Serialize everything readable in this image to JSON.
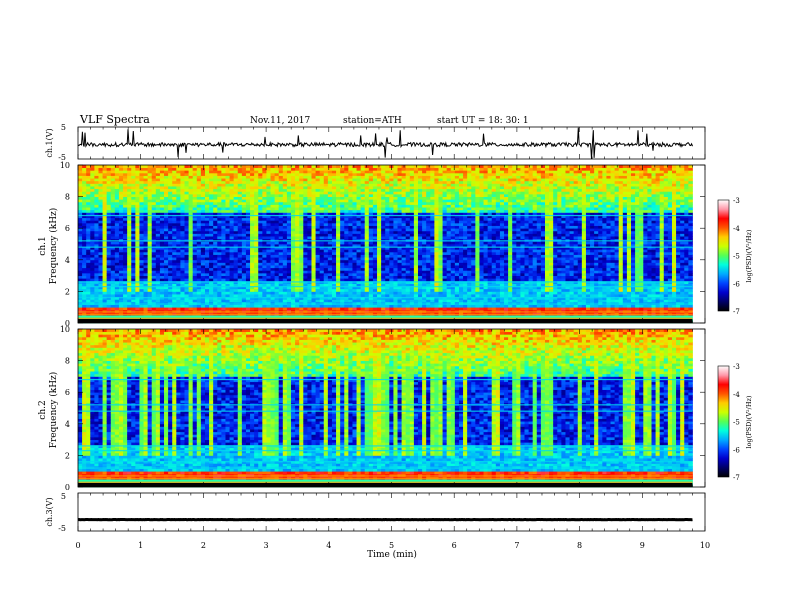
{
  "header": {
    "title": "VLF  Spectra",
    "date": "Nov.11, 2017",
    "station": "station=ATH",
    "start": "start  UT  =   18: 30: 1"
  },
  "colors": {
    "cmap": [
      "#000000",
      "#000066",
      "#0000cc",
      "#0044ff",
      "#00aaff",
      "#00ffdd",
      "#55ff55",
      "#ccff00",
      "#ffcc00",
      "#ff5500",
      "#ff0000",
      "#ff99aa",
      "#ffffff"
    ],
    "waveform": "#000000"
  },
  "chart_data": [
    {
      "type": "line",
      "name": "ch1-waveform",
      "ylabel": "ch.1(V)",
      "ylim": [
        -5,
        5
      ],
      "yticks": [
        "5",
        "-5"
      ],
      "xlim": [
        0,
        10
      ],
      "baseline": -0.5
    },
    {
      "type": "heatmap",
      "name": "ch1-spectrogram",
      "ylabel": "ch.1\nFrequency  (kHz)",
      "ylim": [
        0,
        10
      ],
      "yticks": [
        "0",
        "2",
        "4",
        "6",
        "8",
        "10"
      ],
      "xlim": [
        0,
        10
      ],
      "data_end_min": 9.8,
      "colorbar": {
        "label": "log(PSD)(V²/Hz)",
        "range": [
          -7,
          -3
        ],
        "ticks": [
          "-3",
          "-4",
          "-5",
          "-6",
          "-7"
        ]
      }
    },
    {
      "type": "heatmap",
      "name": "ch2-spectrogram",
      "ylabel": "ch.2\nFrequency  (kHz)",
      "ylim": [
        0,
        10
      ],
      "yticks": [
        "0",
        "2",
        "4",
        "6",
        "8",
        "10"
      ],
      "xlim": [
        0,
        10
      ],
      "data_end_min": 9.8,
      "colorbar": {
        "label": "log(PSD)(V²/Hz)",
        "range": [
          -7,
          -3
        ],
        "ticks": [
          "-3",
          "-4",
          "-5",
          "-6",
          "-7"
        ]
      }
    },
    {
      "type": "line",
      "name": "ch3-waveform",
      "ylabel": "ch.3(V)",
      "ylim": [
        -5,
        5
      ],
      "yticks": [
        "5",
        "-5"
      ],
      "xlim": [
        0,
        10
      ],
      "xlabel": "Time  (min)",
      "xticks": [
        "0",
        "1",
        "2",
        "3",
        "4",
        "5",
        "6",
        "7",
        "8",
        "9",
        "10"
      ],
      "baseline": -2
    }
  ]
}
